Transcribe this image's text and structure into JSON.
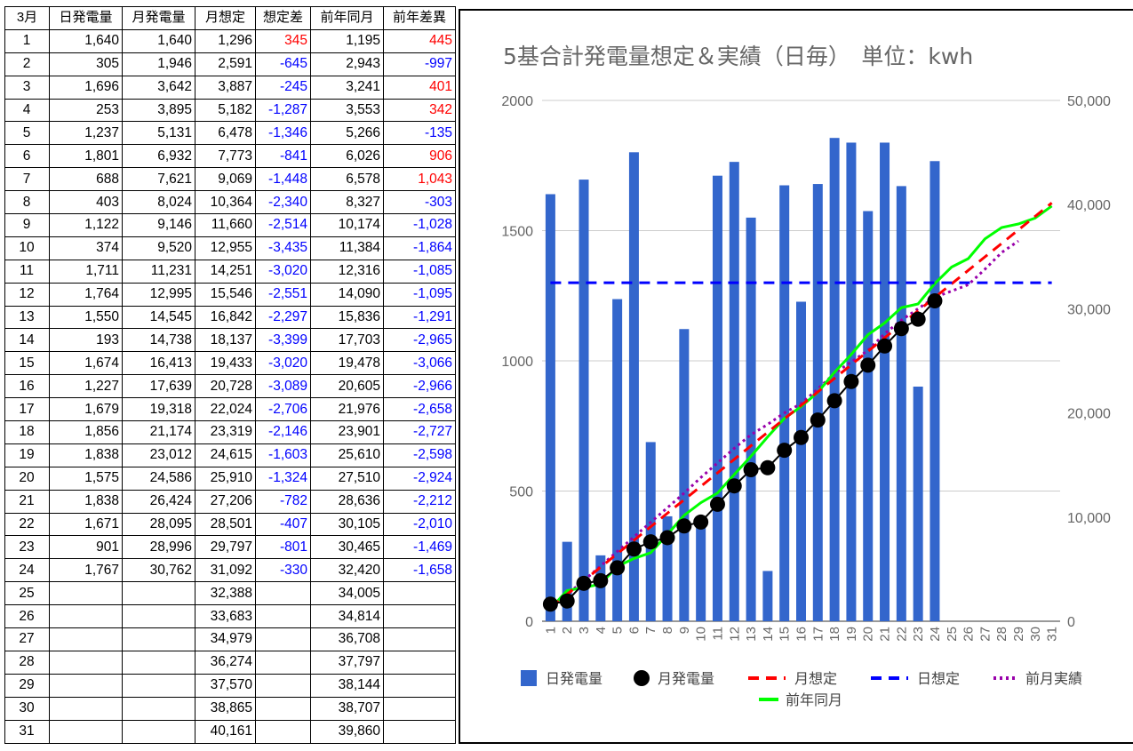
{
  "table": {
    "headers": [
      "3月",
      "日発電量",
      "月発電量",
      "月想定",
      "想定差",
      "前年同月",
      "前年差異"
    ],
    "rows": [
      [
        "1",
        "1,640",
        "1,640",
        "1,296",
        "345",
        "1,195",
        "445"
      ],
      [
        "2",
        "305",
        "1,946",
        "2,591",
        "-645",
        "2,943",
        "-997"
      ],
      [
        "3",
        "1,696",
        "3,642",
        "3,887",
        "-245",
        "3,241",
        "401"
      ],
      [
        "4",
        "253",
        "3,895",
        "5,182",
        "-1,287",
        "3,553",
        "342"
      ],
      [
        "5",
        "1,237",
        "5,131",
        "6,478",
        "-1,346",
        "5,266",
        "-135"
      ],
      [
        "6",
        "1,801",
        "6,932",
        "7,773",
        "-841",
        "6,026",
        "906"
      ],
      [
        "7",
        "688",
        "7,621",
        "9,069",
        "-1,448",
        "6,578",
        "1,043"
      ],
      [
        "8",
        "403",
        "8,024",
        "10,364",
        "-2,340",
        "8,327",
        "-303"
      ],
      [
        "9",
        "1,122",
        "9,146",
        "11,660",
        "-2,514",
        "10,174",
        "-1,028"
      ],
      [
        "10",
        "374",
        "9,520",
        "12,955",
        "-3,435",
        "11,384",
        "-1,864"
      ],
      [
        "11",
        "1,711",
        "11,231",
        "14,251",
        "-3,020",
        "12,316",
        "-1,085"
      ],
      [
        "12",
        "1,764",
        "12,995",
        "15,546",
        "-2,551",
        "14,090",
        "-1,095"
      ],
      [
        "13",
        "1,550",
        "14,545",
        "16,842",
        "-2,297",
        "15,836",
        "-1,291"
      ],
      [
        "14",
        "193",
        "14,738",
        "18,137",
        "-3,399",
        "17,703",
        "-2,965"
      ],
      [
        "15",
        "1,674",
        "16,413",
        "19,433",
        "-3,020",
        "19,478",
        "-3,066"
      ],
      [
        "16",
        "1,227",
        "17,639",
        "20,728",
        "-3,089",
        "20,605",
        "-2,966"
      ],
      [
        "17",
        "1,679",
        "19,318",
        "22,024",
        "-2,706",
        "21,976",
        "-2,658"
      ],
      [
        "18",
        "1,856",
        "21,174",
        "23,319",
        "-2,146",
        "23,901",
        "-2,727"
      ],
      [
        "19",
        "1,838",
        "23,012",
        "24,615",
        "-1,603",
        "25,610",
        "-2,598"
      ],
      [
        "20",
        "1,575",
        "24,586",
        "25,910",
        "-1,324",
        "27,510",
        "-2,924"
      ],
      [
        "21",
        "1,838",
        "26,424",
        "27,206",
        "-782",
        "28,636",
        "-2,212"
      ],
      [
        "22",
        "1,671",
        "28,095",
        "28,501",
        "-407",
        "30,105",
        "-2,010"
      ],
      [
        "23",
        "901",
        "28,996",
        "29,797",
        "-801",
        "30,465",
        "-1,469"
      ],
      [
        "24",
        "1,767",
        "30,762",
        "31,092",
        "-330",
        "32,420",
        "-1,658"
      ],
      [
        "25",
        "",
        "",
        "32,388",
        "",
        "34,005",
        ""
      ],
      [
        "26",
        "",
        "",
        "33,683",
        "",
        "34,814",
        ""
      ],
      [
        "27",
        "",
        "",
        "34,979",
        "",
        "36,708",
        ""
      ],
      [
        "28",
        "",
        "",
        "36,274",
        "",
        "37,797",
        ""
      ],
      [
        "29",
        "",
        "",
        "37,570",
        "",
        "38,144",
        ""
      ],
      [
        "30",
        "",
        "",
        "38,865",
        "",
        "38,707",
        ""
      ],
      [
        "31",
        "",
        "",
        "40,161",
        "",
        "39,860",
        ""
      ]
    ]
  },
  "colors": {
    "positive_diff": "#ff0000",
    "negative_diff": "#0000ff",
    "bar": "#3366cc",
    "monthly": "#000000",
    "monthly_plan": "#ff0000",
    "daily_plan": "#0000ff",
    "prev_month": "#9900aa",
    "prev_year": "#00ff00",
    "gridline": "#cccccc",
    "axis_text": "#666666"
  },
  "chart_data": {
    "type": "bar",
    "title": "5基合計発電量想定＆実績（日毎）　単位：kwh",
    "categories": [
      "1",
      "2",
      "3",
      "4",
      "5",
      "6",
      "7",
      "8",
      "9",
      "10",
      "11",
      "12",
      "13",
      "14",
      "15",
      "16",
      "17",
      "18",
      "19",
      "20",
      "21",
      "22",
      "23",
      "24",
      "25",
      "26",
      "27",
      "28",
      "29",
      "30",
      "31"
    ],
    "left_axis": {
      "ylim": [
        0,
        2000
      ],
      "ticks": [
        "0",
        "500",
        "1000",
        "1500",
        "2000"
      ]
    },
    "right_axis": {
      "ylim": [
        0,
        50000
      ],
      "ticks": [
        "0",
        "10,000",
        "20,000",
        "30,000",
        "40,000",
        "50,000"
      ]
    },
    "grid": true,
    "legend_position": "bottom",
    "series": [
      {
        "name": "日発電量",
        "type": "bar",
        "axis": "left",
        "values": [
          1640,
          305,
          1696,
          253,
          1237,
          1801,
          688,
          403,
          1122,
          374,
          1711,
          1764,
          1550,
          193,
          1674,
          1227,
          1679,
          1856,
          1838,
          1575,
          1838,
          1671,
          901,
          1767,
          null,
          null,
          null,
          null,
          null,
          null,
          null
        ]
      },
      {
        "name": "月発電量",
        "type": "line-marker",
        "axis": "right",
        "values": [
          1640,
          1946,
          3642,
          3895,
          5131,
          6932,
          7621,
          8024,
          9146,
          9520,
          11231,
          12995,
          14545,
          14738,
          16413,
          17639,
          19318,
          21174,
          23012,
          24586,
          26424,
          28095,
          28996,
          30762,
          null,
          null,
          null,
          null,
          null,
          null,
          null
        ]
      },
      {
        "name": "月想定",
        "type": "line-dashed",
        "axis": "right",
        "values": [
          1296,
          2591,
          3887,
          5182,
          6478,
          7773,
          9069,
          10364,
          11660,
          12955,
          14251,
          15546,
          16842,
          18137,
          19433,
          20728,
          22024,
          23319,
          24615,
          25910,
          27206,
          28501,
          29797,
          31092,
          32388,
          33683,
          34979,
          36274,
          37570,
          38865,
          40161
        ]
      },
      {
        "name": "日想定",
        "type": "line-dashed",
        "axis": "left",
        "values": [
          1300,
          1300,
          1300,
          1300,
          1300,
          1300,
          1300,
          1300,
          1300,
          1300,
          1300,
          1300,
          1300,
          1300,
          1300,
          1300,
          1300,
          1300,
          1300,
          1300,
          1300,
          1300,
          1300,
          1300,
          1300,
          1300,
          1300,
          1300,
          1300,
          1300,
          1300
        ]
      },
      {
        "name": "前月実績",
        "type": "line-dotted",
        "axis": "right",
        "values": [
          1200,
          2600,
          3900,
          5300,
          6700,
          8100,
          9500,
          10900,
          12300,
          13800,
          15200,
          16600,
          17900,
          18900,
          20000,
          20900,
          22300,
          23800,
          24900,
          26000,
          27600,
          28900,
          30000,
          31100,
          31700,
          32300,
          33800,
          35400,
          36500,
          null,
          null
        ]
      },
      {
        "name": "前年同月",
        "type": "line",
        "axis": "right",
        "values": [
          1195,
          2943,
          3241,
          3553,
          5266,
          6026,
          6578,
          8327,
          10174,
          11384,
          12316,
          14090,
          15836,
          17703,
          19478,
          20605,
          21976,
          23901,
          25610,
          27510,
          28636,
          30105,
          30465,
          32420,
          34005,
          34814,
          36708,
          37797,
          38144,
          38707,
          39860
        ]
      }
    ]
  }
}
